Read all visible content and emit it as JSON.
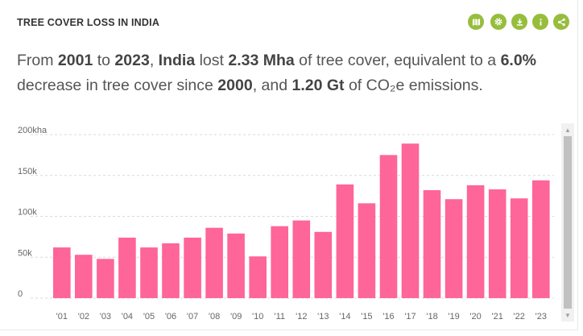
{
  "widget": {
    "title": "TREE COVER LOSS IN INDIA",
    "toolbar": [
      {
        "icon": "map-icon"
      },
      {
        "icon": "settings-icon"
      },
      {
        "icon": "download-icon"
      },
      {
        "icon": "info-icon"
      },
      {
        "icon": "share-icon"
      }
    ],
    "accent_color": "#97bd3d"
  },
  "summary": {
    "p1": "From ",
    "start_year": "2001",
    "p2": " to ",
    "end_year": "2023",
    "p3": ", ",
    "location": "India",
    "p4": " lost ",
    "loss": "2.33 Mha",
    "p5": " of tree cover, equivalent to a ",
    "percent": "6.0%",
    "p6": " decrease in tree cover since ",
    "baseline_year": "2000",
    "p7": ", and ",
    "emissions": "1.20 Gt",
    "p8": " of CO₂e emissions."
  },
  "chart_data": {
    "type": "bar",
    "bar_color": "#fe6598",
    "categories": [
      "'01",
      "'02",
      "'03",
      "'04",
      "'05",
      "'06",
      "'07",
      "'08",
      "'09",
      "'10",
      "'11",
      "'12",
      "'13",
      "'14",
      "'15",
      "'16",
      "'17",
      "'18",
      "'19",
      "'20",
      "'21",
      "'22",
      "'23"
    ],
    "values": [
      62000,
      53000,
      48000,
      74000,
      62000,
      67000,
      74000,
      86000,
      79000,
      51000,
      88000,
      95000,
      81000,
      139000,
      116000,
      175000,
      189000,
      132000,
      121000,
      138000,
      133000,
      122000,
      144000
    ],
    "yticks": [
      {
        "value": 200000,
        "label": "200kha"
      },
      {
        "value": 150000,
        "label": "150k"
      },
      {
        "value": 100000,
        "label": "100k"
      },
      {
        "value": 50000,
        "label": "50k"
      },
      {
        "value": 0,
        "label": "0"
      }
    ],
    "ylim": [
      0,
      200000
    ],
    "grid": true,
    "xlabel": "",
    "ylabel": ""
  }
}
